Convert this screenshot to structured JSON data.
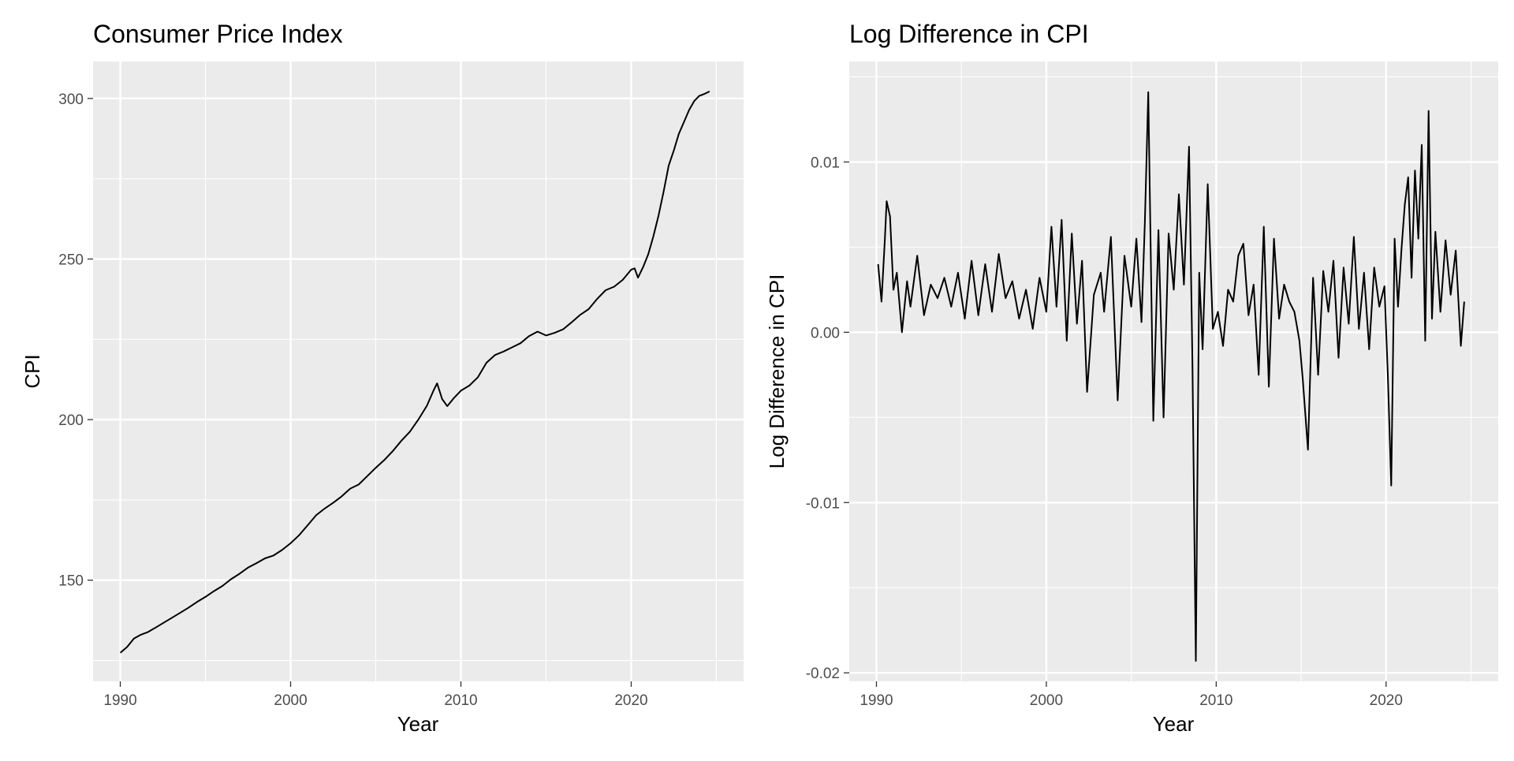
{
  "chart_data": [
    {
      "type": "line",
      "title": "Consumer Price Index",
      "xlabel": "Year",
      "ylabel": "CPI",
      "xlim": [
        1988.4,
        2026.6
      ],
      "ylim": [
        118.5,
        311.5
      ],
      "x_ticks": [
        1990,
        2000,
        2010,
        2020
      ],
      "x_tick_labels": [
        "1990",
        "2000",
        "2010",
        "2020"
      ],
      "x_minor": [
        1995,
        2005,
        2015,
        2025
      ],
      "y_ticks": [
        150,
        200,
        250,
        300
      ],
      "y_tick_labels": [
        "150",
        "200",
        "250",
        "300"
      ],
      "y_minor": [
        125,
        175,
        225,
        275
      ],
      "grid": true,
      "legend": "none",
      "series": [
        {
          "x": [
            1990.0,
            1990.4,
            1990.8,
            1991.2,
            1991.6,
            1992.0,
            1992.5,
            1993.0,
            1993.5,
            1994.0,
            1994.5,
            1995.0,
            1995.5,
            1996.0,
            1996.5,
            1997.0,
            1997.5,
            1998.0,
            1998.5,
            1999.0,
            1999.5,
            2000.0,
            2000.5,
            2001.0,
            2001.5,
            2002.0,
            2002.5,
            2003.0,
            2003.5,
            2004.0,
            2004.5,
            2005.0,
            2005.5,
            2006.0,
            2006.5,
            2007.0,
            2007.5,
            2008.0,
            2008.4,
            2008.6,
            2008.9,
            2009.2,
            2009.6,
            2010.0,
            2010.5,
            2011.0,
            2011.5,
            2012.0,
            2012.5,
            2013.0,
            2013.5,
            2014.0,
            2014.5,
            2015.0,
            2015.5,
            2016.0,
            2016.5,
            2017.0,
            2017.5,
            2018.0,
            2018.5,
            2019.0,
            2019.5,
            2020.0,
            2020.2,
            2020.4,
            2020.7,
            2021.0,
            2021.3,
            2021.6,
            2021.9,
            2022.2,
            2022.5,
            2022.8,
            2023.1,
            2023.4,
            2023.7,
            2024.0,
            2024.3,
            2024.6
          ],
          "values": [
            127.4,
            129.2,
            131.8,
            133.0,
            133.8,
            135.0,
            136.6,
            138.2,
            139.8,
            141.4,
            143.2,
            144.8,
            146.6,
            148.2,
            150.3,
            152.0,
            153.9,
            155.3,
            156.8,
            157.7,
            159.4,
            161.5,
            164.0,
            167.1,
            170.2,
            172.3,
            174.1,
            176.1,
            178.5,
            179.8,
            182.4,
            185.0,
            187.4,
            190.2,
            193.4,
            196.2,
            200.0,
            204.3,
            209.1,
            211.3,
            206.4,
            204.2,
            206.8,
            209.0,
            210.6,
            213.2,
            217.7,
            220.1,
            221.2,
            222.5,
            223.8,
            226.0,
            227.4,
            226.2,
            227.0,
            228.1,
            230.3,
            232.6,
            234.4,
            237.6,
            240.3,
            241.4,
            243.5,
            246.7,
            247.1,
            244.2,
            247.5,
            251.5,
            257.0,
            263.4,
            270.9,
            279.1,
            283.8,
            289.0,
            292.7,
            296.4,
            299.2,
            300.8,
            301.4,
            302.2
          ]
        }
      ]
    },
    {
      "type": "line",
      "title": "Log Difference in CPI",
      "xlabel": "Year",
      "ylabel": "Log Difference in CPI",
      "xlim": [
        1988.4,
        2026.6
      ],
      "ylim": [
        -0.0205,
        0.0159
      ],
      "x_ticks": [
        1990,
        2000,
        2010,
        2020
      ],
      "x_tick_labels": [
        "1990",
        "2000",
        "2010",
        "2020"
      ],
      "x_minor": [
        1995,
        2005,
        2015,
        2025
      ],
      "y_ticks": [
        -0.02,
        -0.01,
        0.0,
        0.01
      ],
      "y_tick_labels": [
        "-0.02",
        "-0.01",
        "0.00",
        "0.01"
      ],
      "y_minor": [
        -0.015,
        -0.005,
        0.005,
        0.015
      ],
      "grid": true,
      "legend": "none",
      "series": [
        {
          "x": [
            1990.1,
            1990.3,
            1990.5,
            1990.6,
            1990.8,
            1991.0,
            1991.2,
            1991.5,
            1991.8,
            1992.0,
            1992.4,
            1992.8,
            1993.2,
            1993.6,
            1994.0,
            1994.4,
            1994.8,
            1995.2,
            1995.6,
            1996.0,
            1996.4,
            1996.8,
            1997.2,
            1997.6,
            1998.0,
            1998.4,
            1998.8,
            1999.2,
            1999.6,
            2000.0,
            2000.3,
            2000.6,
            2000.9,
            2001.2,
            2001.5,
            2001.8,
            2002.1,
            2002.4,
            2002.8,
            2003.2,
            2003.4,
            2003.8,
            2004.2,
            2004.6,
            2005.0,
            2005.3,
            2005.6,
            2005.8,
            2006.0,
            2006.3,
            2006.6,
            2006.9,
            2007.2,
            2007.5,
            2007.8,
            2008.1,
            2008.4,
            2008.6,
            2008.8,
            2009.0,
            2009.2,
            2009.5,
            2009.8,
            2010.1,
            2010.4,
            2010.7,
            2011.0,
            2011.3,
            2011.6,
            2011.9,
            2012.2,
            2012.5,
            2012.8,
            2013.1,
            2013.4,
            2013.7,
            2014.0,
            2014.3,
            2014.6,
            2014.9,
            2015.1,
            2015.4,
            2015.7,
            2016.0,
            2016.3,
            2016.6,
            2016.9,
            2017.2,
            2017.5,
            2017.8,
            2018.1,
            2018.4,
            2018.7,
            2019.0,
            2019.3,
            2019.6,
            2019.9,
            2020.1,
            2020.3,
            2020.5,
            2020.7,
            2020.9,
            2021.1,
            2021.3,
            2021.5,
            2021.7,
            2021.9,
            2022.1,
            2022.3,
            2022.5,
            2022.7,
            2022.9,
            2023.2,
            2023.5,
            2023.8,
            2024.1,
            2024.4,
            2024.6
          ],
          "values": [
            0.004,
            0.0018,
            0.0055,
            0.0077,
            0.0068,
            0.0025,
            0.0035,
            0.0,
            0.003,
            0.0015,
            0.0045,
            0.001,
            0.0028,
            0.002,
            0.0032,
            0.0015,
            0.0035,
            0.0008,
            0.0042,
            0.001,
            0.004,
            0.0012,
            0.0046,
            0.002,
            0.003,
            0.0008,
            0.0025,
            0.0002,
            0.0032,
            0.0012,
            0.0062,
            0.0015,
            0.0066,
            -0.0005,
            0.0058,
            0.0005,
            0.0042,
            -0.0035,
            0.0022,
            0.0035,
            0.0012,
            0.0056,
            -0.004,
            0.0045,
            0.0015,
            0.0055,
            0.0006,
            0.0065,
            0.0141,
            -0.0052,
            0.006,
            -0.005,
            0.0058,
            0.0025,
            0.0081,
            0.0028,
            0.0109,
            -0.0018,
            -0.0193,
            0.0035,
            -0.001,
            0.0087,
            0.0002,
            0.0012,
            -0.0008,
            0.0025,
            0.0018,
            0.0045,
            0.0052,
            0.001,
            0.0028,
            -0.0025,
            0.0062,
            -0.0032,
            0.0055,
            0.0008,
            0.0028,
            0.0018,
            0.0012,
            -0.0005,
            -0.0028,
            -0.0069,
            0.0032,
            -0.0025,
            0.0036,
            0.0012,
            0.0042,
            -0.0015,
            0.0038,
            0.0005,
            0.0056,
            0.0002,
            0.0035,
            -0.001,
            0.0038,
            0.0015,
            0.0027,
            -0.0025,
            -0.009,
            0.0055,
            0.0015,
            0.0048,
            0.0075,
            0.0091,
            0.0032,
            0.0095,
            0.0055,
            0.011,
            -0.0005,
            0.013,
            0.0008,
            0.0059,
            0.0012,
            0.0054,
            0.0022,
            0.0048,
            -0.0008,
            0.0018
          ]
        }
      ]
    }
  ]
}
